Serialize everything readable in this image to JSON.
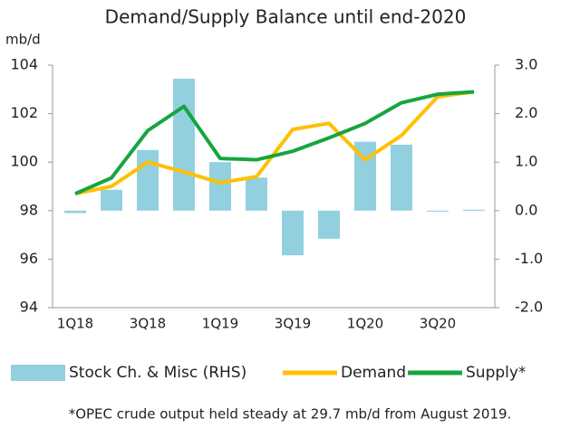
{
  "chart_data": {
    "type": "bar-line",
    "title": "Demand/Supply Balance until end-2020",
    "y_label": "mb/d",
    "categories": [
      "1Q18",
      null,
      "3Q18",
      null,
      "1Q19",
      null,
      "3Q19",
      null,
      "1Q20",
      null,
      "3Q20",
      null
    ],
    "series": [
      {
        "name": "Stock Ch. & Misc (RHS)",
        "type": "bar",
        "axis": "y2",
        "color": "#92d0e0",
        "values": [
          -0.05,
          0.43,
          1.25,
          2.72,
          1.0,
          0.68,
          -0.92,
          -0.58,
          1.42,
          1.36,
          -0.02,
          0.02
        ]
      },
      {
        "name": "Demand",
        "type": "line",
        "color": "#ffc000",
        "values": [
          98.7,
          99.0,
          100.0,
          99.6,
          99.15,
          99.4,
          101.35,
          101.6,
          100.1,
          101.1,
          102.7,
          102.9
        ]
      },
      {
        "name": "Supply*",
        "type": "line",
        "color": "#16a53f",
        "values": [
          98.7,
          99.35,
          101.3,
          102.3,
          100.15,
          100.1,
          100.45,
          101.0,
          101.6,
          102.45,
          102.8,
          102.9
        ]
      }
    ],
    "ylim": [
      94,
      104
    ],
    "yticks": [
      94,
      96,
      98,
      100,
      102,
      104
    ],
    "y2lim": [
      -2,
      3
    ],
    "y2ticks": [
      {
        "value": -2,
        "label": "-2.0"
      },
      {
        "value": -1,
        "label": "-1.0"
      },
      {
        "value": 0,
        "label": "0.0"
      },
      {
        "value": 1,
        "label": "1.0"
      },
      {
        "value": 2,
        "label": "2.0"
      },
      {
        "value": 3,
        "label": "3.0"
      }
    ],
    "footnote": "*OPEC crude output  held steady at 29.7 mb/d from August 2019."
  }
}
